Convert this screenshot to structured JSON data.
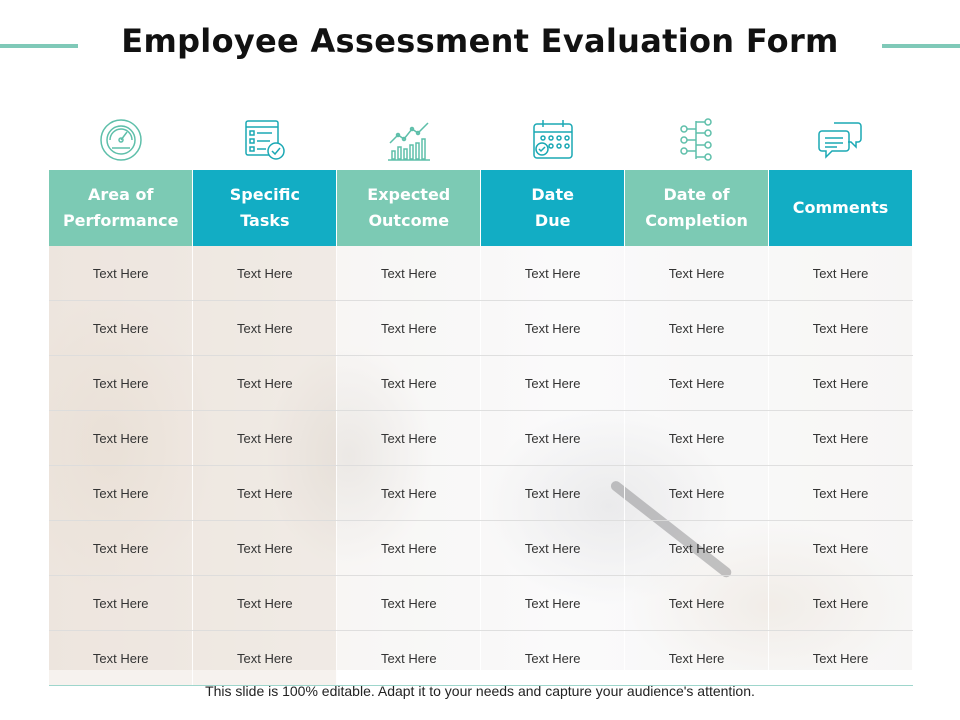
{
  "title": "Employee Assessment Evaluation Form",
  "accent_green": "#7ccab4",
  "accent_teal": "#12adc4",
  "icons": [
    "speedometer-icon",
    "checklist-icon",
    "growth-chart-icon",
    "calendar-check-icon",
    "flow-diagram-icon",
    "chat-bubbles-icon"
  ],
  "table": {
    "headers": [
      "Area of\nPerformance",
      "Specific\nTasks",
      "Expected\nOutcome",
      "Date\nDue",
      "Date of\nCompletion",
      "Comments"
    ],
    "rows": [
      [
        "Text Here",
        "Text Here",
        "Text Here",
        "Text Here",
        "Text Here",
        "Text Here"
      ],
      [
        "Text Here",
        "Text Here",
        "Text Here",
        "Text Here",
        "Text Here",
        "Text Here"
      ],
      [
        "Text Here",
        "Text Here",
        "Text Here",
        "Text Here",
        "Text Here",
        "Text Here"
      ],
      [
        "Text Here",
        "Text Here",
        "Text Here",
        "Text Here",
        "Text Here",
        "Text Here"
      ],
      [
        "Text Here",
        "Text Here",
        "Text Here",
        "Text Here",
        "Text Here",
        "Text Here"
      ],
      [
        "Text Here",
        "Text Here",
        "Text Here",
        "Text Here",
        "Text Here",
        "Text Here"
      ],
      [
        "Text Here",
        "Text Here",
        "Text Here",
        "Text Here",
        "Text Here",
        "Text Here"
      ],
      [
        "Text Here",
        "Text Here",
        "Text Here",
        "Text Here",
        "Text Here",
        "Text Here"
      ]
    ]
  },
  "footer": "This slide is 100% editable. Adapt it to your needs and capture your audience's attention."
}
